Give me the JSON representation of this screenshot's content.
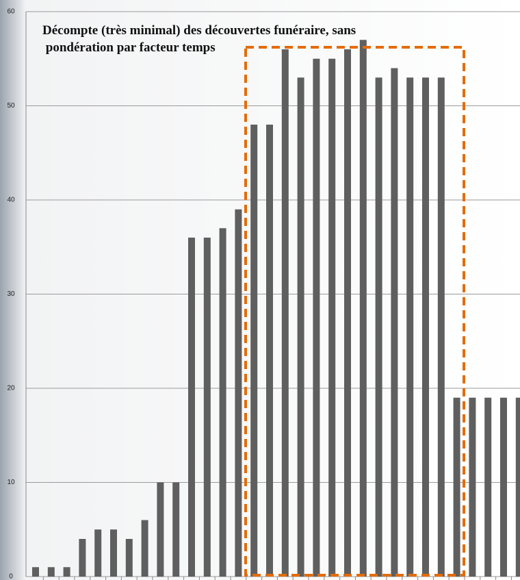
{
  "chart_data": {
    "type": "bar",
    "title": [
      "Décompte (très minimal) des découvertes funéraire, sans",
      " pondération par facteur temps"
    ],
    "categories": [
      null,
      null,
      null,
      null,
      null,
      null,
      null,
      null,
      null,
      null,
      null,
      null,
      null,
      null,
      null,
      null,
      null,
      null,
      null,
      null,
      null,
      null,
      null,
      null,
      null,
      null,
      null,
      null,
      null,
      null,
      null,
      null
    ],
    "values": [
      1,
      1,
      1,
      4,
      5,
      5,
      4,
      6,
      10,
      10,
      36,
      36,
      37,
      39,
      48,
      48,
      56,
      53,
      55,
      55,
      56,
      57,
      53,
      54,
      53,
      53,
      53,
      19,
      19,
      19,
      19,
      19
    ],
    "color": "#5f5f5f",
    "ylim": [
      0,
      60
    ],
    "yticks": [
      0,
      10,
      20,
      30,
      40,
      50,
      60
    ],
    "grid": true
  }
}
